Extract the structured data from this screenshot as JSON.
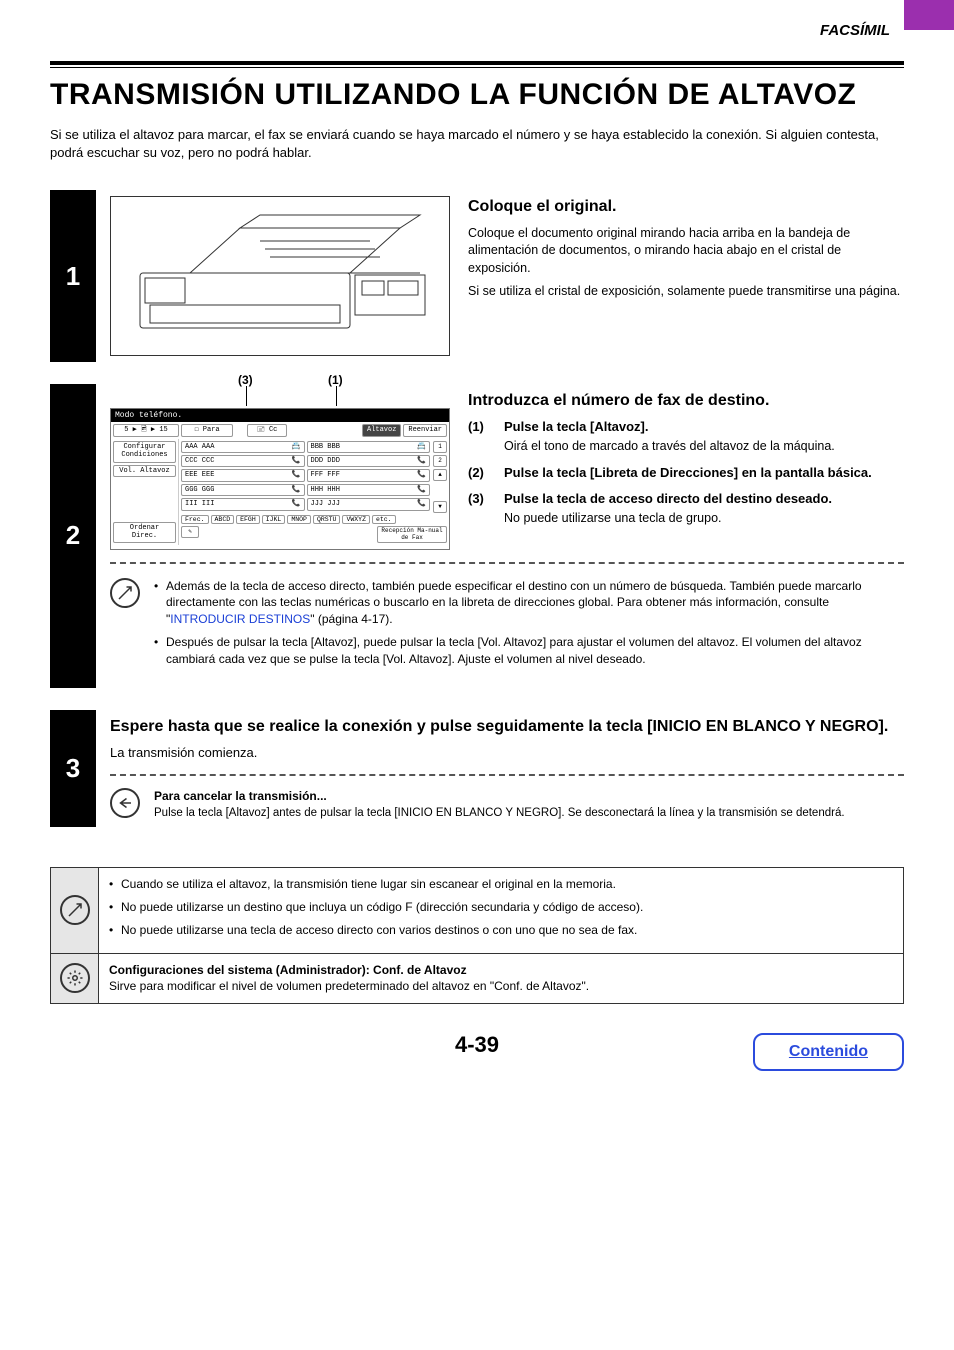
{
  "header": {
    "section": "FACSÍMIL"
  },
  "title": "TRANSMISIÓN UTILIZANDO LA FUNCIÓN DE ALTAVOZ",
  "intro": "Si se utiliza el altavoz para marcar, el fax se enviará cuando se haya marcado el número y se haya establecido la conexión. Si alguien contesta, podrá escuchar su voz, pero no podrá hablar.",
  "step1": {
    "num": "1",
    "heading": "Coloque el original.",
    "p1": "Coloque el documento original mirando hacia arriba en la bandeja de alimentación de documentos, o mirando hacia abajo en el cristal de exposición.",
    "p2": "Si se utiliza el cristal de exposición, solamente puede transmitirse una página."
  },
  "step2": {
    "num": "2",
    "callout3": "(3)",
    "callout1": "(1)",
    "heading": "Introduzca el número de fax de destino.",
    "subs": [
      {
        "n": "(1)",
        "h": "Pulse la tecla [Altavoz].",
        "d": "Oirá el tono de marcado a través del altavoz de la máquina."
      },
      {
        "n": "(2)",
        "h": "Pulse la tecla [Libreta de Direcciones] en la pantalla básica.",
        "d": ""
      },
      {
        "n": "(3)",
        "h": "Pulse la tecla de acceso directo del destino deseado.",
        "d": "No puede utilizarse una tecla de grupo."
      }
    ],
    "note_b1a": "Además de la tecla de acceso directo, también puede especificar el destino con un número de búsqueda. También puede marcarlo directamente con las teclas numéricas o buscarlo en la libreta de direcciones global. Para obtener más información, consulte \"",
    "note_b1_link": "INTRODUCIR DESTINOS",
    "note_b1b": "\" (página 4-17).",
    "note_b2": "Después de pulsar la tecla [Altavoz], puede pulsar la tecla [Vol. Altavoz] para ajustar el volumen del altavoz. El volumen del altavoz cambiará cada vez que se pulse la tecla [Vol. Altavoz]. Ajuste el volumen al nivel deseado.",
    "panel": {
      "top": "Modo teléfono.",
      "left_info": "5 ▶ 🖻 ▶ 15",
      "btn_para": "☐ Para",
      "btn_cc": "🖃 Cc",
      "btn_conf": "Configurar Condiciones",
      "btn_vol": "Vol. Altavoz",
      "btn_alt": "Altavoz",
      "btn_reenv": "Reenviar",
      "rows": [
        [
          "AAA AAA",
          "BBB BBB"
        ],
        [
          "CCC CCC",
          "DDD DDD"
        ],
        [
          "EEE EEE",
          "FFF FFF"
        ],
        [
          "GGG GGG",
          "HHH HHH"
        ],
        [
          "III III",
          "JJJ JJJ"
        ]
      ],
      "sort": "Ordenar Direc.",
      "tabs_lead": "Frec.",
      "tabs": [
        "ABCD",
        "EFGH",
        "IJKL",
        "MNOP",
        "QRSTU",
        "VWXYZ",
        "etc."
      ],
      "recep": "Recepción Ma-nual de Fax"
    }
  },
  "step3": {
    "num": "3",
    "heading": "Espere hasta que se realice la conexión y pulse seguidamente la tecla [INICIO EN BLANCO Y NEGRO].",
    "p": "La transmisión comienza.",
    "cancel_h": "Para cancelar la transmisión...",
    "cancel_d": "Pulse la tecla [Altavoz] antes de pulsar la tecla [INICIO EN BLANCO Y NEGRO]. Se desconectará la línea y la transmisión se detendrá."
  },
  "box1": {
    "l1": "Cuando se utiliza el altavoz, la transmisión tiene lugar sin escanear el original en la memoria.",
    "l2": "No puede utilizarse un destino que incluya un código F (dirección secundaria y código de acceso).",
    "l3": "No puede utilizarse una tecla de acceso directo con varios destinos o con uno que no sea de fax."
  },
  "box2": {
    "h": "Configuraciones del sistema (Administrador): Conf. de Altavoz",
    "d": "Sirve para modificar el nivel de volumen predeterminado del altavoz en \"Conf. de Altavoz\"."
  },
  "page_num": "4-39",
  "contents_btn": "Contenido"
}
